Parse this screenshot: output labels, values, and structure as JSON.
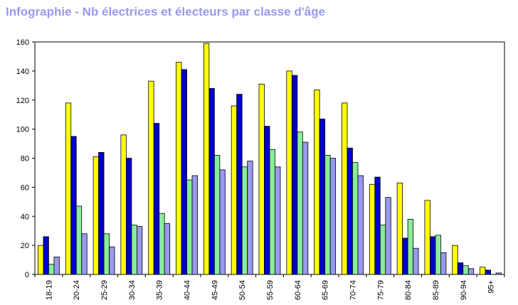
{
  "title": "Infographie - Nb électrices et électeurs par classe d'âge",
  "chart_data": {
    "type": "bar",
    "title": "Infographie - Nb électrices et électeurs par classe d'âge",
    "xlabel": "",
    "ylabel": "",
    "ylim": [
      0,
      160
    ],
    "yticks": [
      0,
      20,
      40,
      60,
      80,
      100,
      120,
      140,
      160
    ],
    "grid": false,
    "legend": "none",
    "categories": [
      "18-19",
      "20-24",
      "25-29",
      "30-34",
      "35-39",
      "40-44",
      "45-49",
      "50-54",
      "55-59",
      "60-64",
      "65-69",
      "70-74",
      "75-79",
      "80-84",
      "85-89",
      "90-94",
      "95+"
    ],
    "series": [
      {
        "color": "#ffff00",
        "values": [
          20,
          118,
          81,
          96,
          133,
          146,
          159,
          116,
          131,
          140,
          127,
          118,
          62,
          63,
          51,
          20,
          5
        ]
      },
      {
        "color": "#0000cc",
        "values": [
          26,
          95,
          84,
          80,
          104,
          141,
          128,
          124,
          102,
          137,
          107,
          87,
          67,
          25,
          26,
          8,
          3
        ]
      },
      {
        "color": "#88ee99",
        "values": [
          7,
          47,
          28,
          34,
          42,
          65,
          82,
          74,
          86,
          98,
          82,
          77,
          34,
          38,
          27,
          6,
          0
        ]
      },
      {
        "color": "#9999ee",
        "values": [
          12,
          28,
          19,
          33,
          35,
          68,
          72,
          78,
          74,
          91,
          80,
          68,
          53,
          18,
          15,
          4,
          1
        ]
      }
    ]
  }
}
